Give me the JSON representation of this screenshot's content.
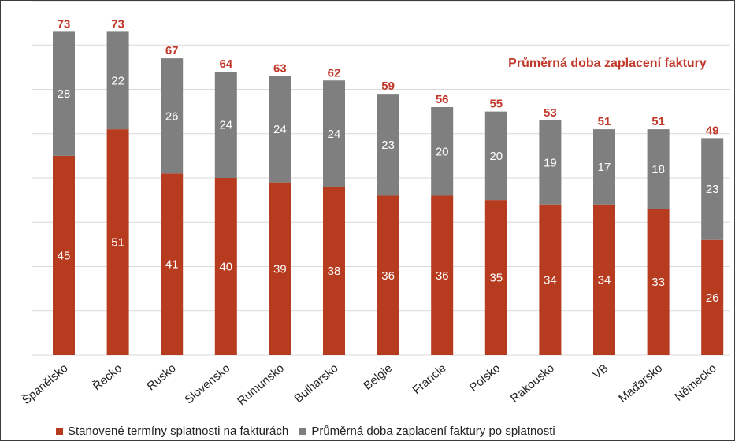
{
  "chart_data": {
    "type": "bar",
    "stacked": true,
    "title": "",
    "annotation": "Průměrná doba zaplacení faktury",
    "categories": [
      "Španělsko",
      "Řecko",
      "Rusko",
      "Slovensko",
      "Rumunsko",
      "Bulharsko",
      "Belgie",
      "Francie",
      "Polsko",
      "Rakousko",
      "VB",
      "Maďarsko",
      "Německo"
    ],
    "series": [
      {
        "name": "Stanovené termíny splatnosti na fakturách",
        "color": "#b73c1f",
        "values": [
          45,
          51,
          41,
          40,
          39,
          38,
          36,
          36,
          35,
          34,
          34,
          33,
          26
        ]
      },
      {
        "name": "Průměrná doba zaplacení faktury po splatnosti",
        "color": "#7f7f7f",
        "values": [
          28,
          22,
          26,
          24,
          24,
          24,
          23,
          20,
          20,
          19,
          17,
          18,
          23
        ]
      }
    ],
    "totals": [
      73,
      73,
      67,
      64,
      63,
      62,
      59,
      56,
      55,
      53,
      51,
      51,
      49
    ],
    "ylim": [
      0,
      80
    ],
    "grid": true,
    "legend": "bottom",
    "total_label_color": "#c0392b"
  }
}
